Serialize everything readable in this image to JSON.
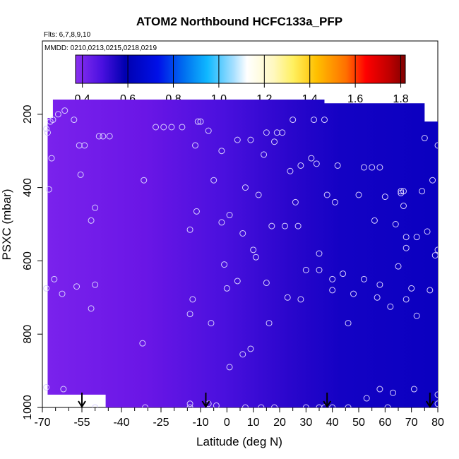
{
  "chart_data": {
    "type": "heatmap",
    "title": "ATOM2 Northbound HCFC133a_PFP",
    "flights_note": "Flts: 6,7,8,9,10",
    "dates_note": "MMDD: 0210,0213,0215,0218,0219",
    "xlabel": "Latitude (deg N)",
    "ylabel": "PSXC (mbar)",
    "xlim": [
      -70,
      80
    ],
    "ylim": [
      1000,
      0
    ],
    "x_ticks": [
      -70,
      -55,
      -40,
      -25,
      -10,
      0,
      10,
      20,
      30,
      40,
      50,
      60,
      70,
      80
    ],
    "x_tick_labels": [
      "-70",
      "-55",
      "-40",
      "-25",
      "-10",
      "0",
      "10",
      "20",
      "30",
      "40",
      "50",
      "60",
      "70",
      "80"
    ],
    "x_minor_ticks": [
      -65,
      -60,
      -50,
      -45,
      -35,
      -30,
      -20,
      -15,
      -5,
      5,
      15,
      25,
      35,
      45,
      55,
      65,
      75
    ],
    "y_ticks": [
      200,
      400,
      600,
      800,
      1000
    ],
    "y_tick_labels": [
      "200",
      "400",
      "600",
      "800",
      "1000"
    ],
    "colorbar": {
      "range": [
        0.37,
        1.82
      ],
      "ticks": [
        0.4,
        0.6,
        0.8,
        1.0,
        1.2,
        1.4,
        1.6,
        1.8
      ],
      "tick_labels": [
        "0.4",
        "0.6",
        "0.8",
        "1.0",
        "1.2",
        "1.4",
        "1.6",
        "1.8"
      ]
    },
    "sample_points": [
      [
        -68.5,
        240
      ],
      [
        -68,
        250
      ],
      [
        -67,
        220
      ],
      [
        -66,
        215
      ],
      [
        -64,
        200
      ],
      [
        -61.5,
        190
      ],
      [
        -58,
        215
      ],
      [
        -66.5,
        320
      ],
      [
        -67.5,
        405
      ],
      [
        -65.5,
        650
      ],
      [
        -68.5,
        675
      ],
      [
        -62.5,
        690
      ],
      [
        -56,
        285
      ],
      [
        -54,
        285
      ],
      [
        -55.5,
        365
      ],
      [
        -51.5,
        490
      ],
      [
        -50,
        455
      ],
      [
        -48.5,
        260
      ],
      [
        -47,
        260
      ],
      [
        -44.5,
        260
      ],
      [
        -51.5,
        730
      ],
      [
        -50,
        665
      ],
      [
        -57,
        670
      ],
      [
        -68.5,
        945
      ],
      [
        -62,
        950
      ],
      [
        -50,
        1000
      ],
      [
        -31.5,
        380
      ],
      [
        -27,
        235
      ],
      [
        -24,
        235
      ],
      [
        -21,
        235
      ],
      [
        -17,
        235
      ],
      [
        -11,
        220
      ],
      [
        -10,
        220
      ],
      [
        -14,
        515
      ],
      [
        -11.5,
        465
      ],
      [
        -12,
        285
      ],
      [
        -7,
        245
      ],
      [
        -5,
        380
      ],
      [
        -2,
        300
      ],
      [
        -2,
        495
      ],
      [
        1,
        475
      ],
      [
        4,
        270
      ],
      [
        9,
        270
      ],
      [
        -14,
        745
      ],
      [
        -13,
        705
      ],
      [
        -6,
        770
      ],
      [
        -1,
        610
      ],
      [
        0,
        675
      ],
      [
        -32,
        825
      ],
      [
        -31,
        1000
      ],
      [
        -14,
        1000
      ],
      [
        -14,
        990
      ],
      [
        -7,
        990
      ],
      [
        -4,
        995
      ],
      [
        1,
        890
      ],
      [
        6,
        855
      ],
      [
        9,
        840
      ],
      [
        4,
        655
      ],
      [
        6,
        525
      ],
      [
        10,
        570
      ],
      [
        11,
        590
      ],
      [
        14,
        310
      ],
      [
        15,
        250
      ],
      [
        18,
        275
      ],
      [
        19,
        250
      ],
      [
        21,
        250
      ],
      [
        12,
        420
      ],
      [
        7,
        400
      ],
      [
        17,
        505
      ],
      [
        15,
        660
      ],
      [
        16,
        770
      ],
      [
        18,
        1000
      ],
      [
        13,
        1000
      ],
      [
        7,
        1000
      ],
      [
        25,
        215
      ],
      [
        28,
        340
      ],
      [
        26,
        440
      ],
      [
        24,
        355
      ],
      [
        22,
        505
      ],
      [
        23,
        700
      ],
      [
        27,
        505
      ],
      [
        30,
        625
      ],
      [
        28,
        705
      ],
      [
        30,
        1000
      ],
      [
        32,
        320
      ],
      [
        34,
        335
      ],
      [
        35,
        580
      ],
      [
        35,
        625
      ],
      [
        38,
        420
      ],
      [
        40,
        650
      ],
      [
        40,
        680
      ],
      [
        41,
        440
      ],
      [
        42,
        340
      ],
      [
        44,
        635
      ],
      [
        46,
        770
      ],
      [
        46,
        1000
      ],
      [
        48,
        690
      ],
      [
        50,
        420
      ],
      [
        52,
        345
      ],
      [
        52,
        650
      ],
      [
        55,
        345
      ],
      [
        58,
        345
      ],
      [
        56,
        490
      ],
      [
        57,
        700
      ],
      [
        58,
        665
      ],
      [
        60,
        425
      ],
      [
        58,
        950
      ],
      [
        61,
        1000
      ],
      [
        62,
        725
      ],
      [
        64,
        500
      ],
      [
        65,
        615
      ],
      [
        66,
        415
      ],
      [
        67,
        410
      ],
      [
        67,
        450
      ],
      [
        68,
        535
      ],
      [
        68,
        565
      ],
      [
        68,
        705
      ],
      [
        70,
        675
      ],
      [
        71,
        950
      ],
      [
        72,
        535
      ],
      [
        72,
        750
      ],
      [
        74,
        410
      ],
      [
        75,
        265
      ],
      [
        76,
        520
      ],
      [
        77,
        680
      ],
      [
        78,
        380
      ],
      [
        79,
        585
      ],
      [
        80,
        285
      ],
      [
        80,
        965
      ],
      [
        80,
        990
      ],
      [
        80,
        570
      ],
      [
        66,
        410
      ],
      [
        63,
        960
      ],
      [
        53,
        975
      ],
      [
        40,
        1000
      ],
      [
        37,
        1000
      ],
      [
        35,
        1000
      ],
      [
        33,
        215
      ],
      [
        37,
        215
      ]
    ],
    "arrows_at_latitude": [
      -55,
      -8,
      38,
      77
    ]
  }
}
